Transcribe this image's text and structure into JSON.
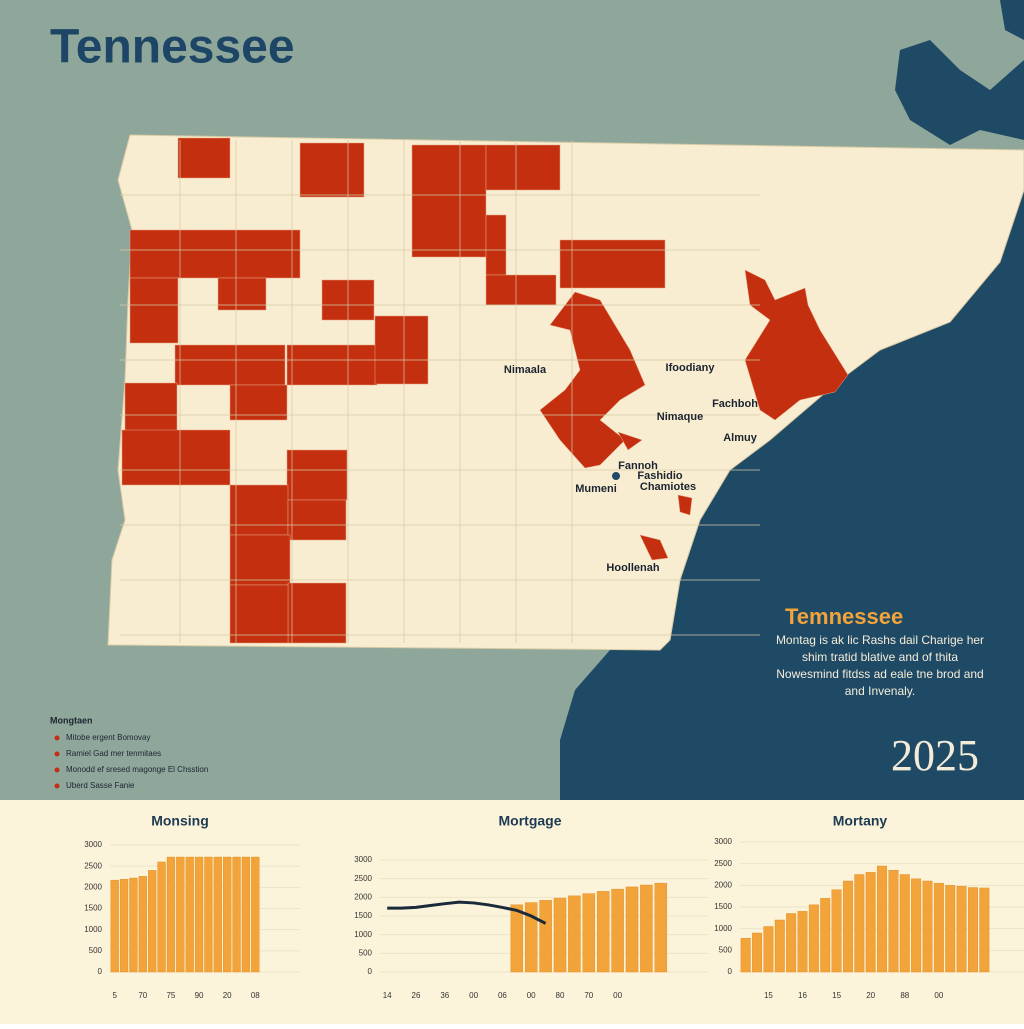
{
  "title": "Tennessee",
  "map": {
    "labels": [
      "Nimaala",
      "Ifoodiany",
      "Fachboh",
      "Nimaque",
      "Almuy",
      "Fannoh",
      "Fashidio",
      "Chamiotes",
      "Mumeni",
      "Hoollenah"
    ]
  },
  "info": {
    "title": "Temnessee",
    "text": "Montag is ak lic Rashs dail Charige her shim tratid blative and of thita Nowesmind fitdss ad eale tne brod and and Invenaly.",
    "year": "2025"
  },
  "legend": {
    "title": "Mongtaen",
    "items": [
      "Mitobe ergent Bomovay",
      "Ramiel Gad mer tenmitaes",
      "Monodd ef sresed magonge El Chsstion",
      "Uberd Sasse Fanie"
    ]
  },
  "chart_data": [
    {
      "type": "bar",
      "title": "Monsing",
      "color": "#f2a33a",
      "categories": [
        "5",
        null,
        null,
        "70",
        null,
        null,
        "75",
        null,
        null,
        "90",
        null,
        null,
        "20",
        null,
        null,
        "08"
      ],
      "values": [
        2170,
        2190,
        2220,
        2260,
        2400,
        2600,
        2716,
        2716,
        2716,
        2716,
        2716,
        2716,
        2716,
        2716,
        2716,
        2716
      ],
      "ylim": [
        0,
        3000
      ],
      "yticks": [
        0,
        500,
        1000,
        1500,
        2000,
        2500,
        3000
      ],
      "grid": true
    },
    {
      "type": "bar",
      "title": "Mortgage",
      "color": "#f2a33a",
      "line_color": "#1b2a3a",
      "categories": [
        "14",
        null,
        "26",
        null,
        "36",
        null,
        "00",
        null,
        "06",
        null,
        "00",
        null,
        "80",
        null,
        "70",
        null,
        "00",
        null,
        null,
        null
      ],
      "values": [
        null,
        null,
        null,
        null,
        null,
        null,
        null,
        null,
        null,
        1800,
        1860,
        1920,
        1980,
        2040,
        2100,
        2160,
        2220,
        2280,
        2330,
        2380
      ],
      "line_values": [
        1710,
        1710,
        1730,
        1780,
        1830,
        1870,
        1850,
        1800,
        1730,
        1650,
        1500,
        1300,
        null,
        null,
        null,
        null,
        null,
        null,
        null,
        null
      ],
      "ylim": [
        0,
        3000
      ],
      "yticks": [
        0,
        500,
        1000,
        1500,
        2000,
        2500,
        3000
      ],
      "grid": true
    },
    {
      "type": "bar",
      "title": "Mortany",
      "color": "#f2a33a",
      "categories": [
        null,
        null,
        "15",
        null,
        null,
        "16",
        null,
        null,
        "15",
        null,
        null,
        "20",
        null,
        null,
        "88",
        null,
        null,
        "00",
        null,
        null,
        null,
        null
      ],
      "values": [
        780,
        900,
        1050,
        1200,
        1350,
        1400,
        1550,
        1700,
        1900,
        2100,
        2250,
        2300,
        2446,
        2350,
        2250,
        2150,
        2100,
        2050,
        2000,
        1980,
        1950,
        1940
      ],
      "ylim": [
        0,
        3000
      ],
      "yticks": [
        0,
        500,
        1000,
        1500,
        2000,
        2500,
        3000
      ],
      "grid": true
    }
  ]
}
